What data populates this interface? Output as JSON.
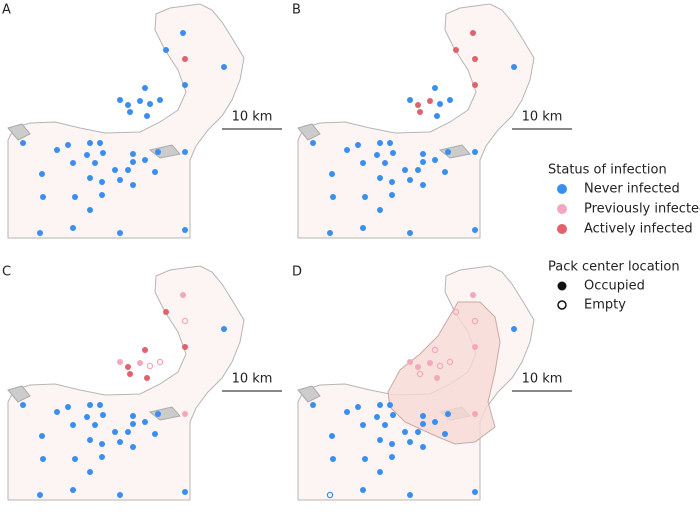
{
  "panels": [
    {
      "label": "A",
      "scale": "10 km"
    },
    {
      "label": "B",
      "scale": "10 km"
    },
    {
      "label": "C",
      "scale": "10 km"
    },
    {
      "label": "D",
      "scale": "10 km"
    }
  ],
  "legend": {
    "status_title": "Status of infection",
    "status_items": [
      "Never infected",
      "Previously infected",
      "Actively infected"
    ],
    "location_title": "Pack center location",
    "location_items": [
      "Occupied",
      "Empty"
    ]
  }
}
